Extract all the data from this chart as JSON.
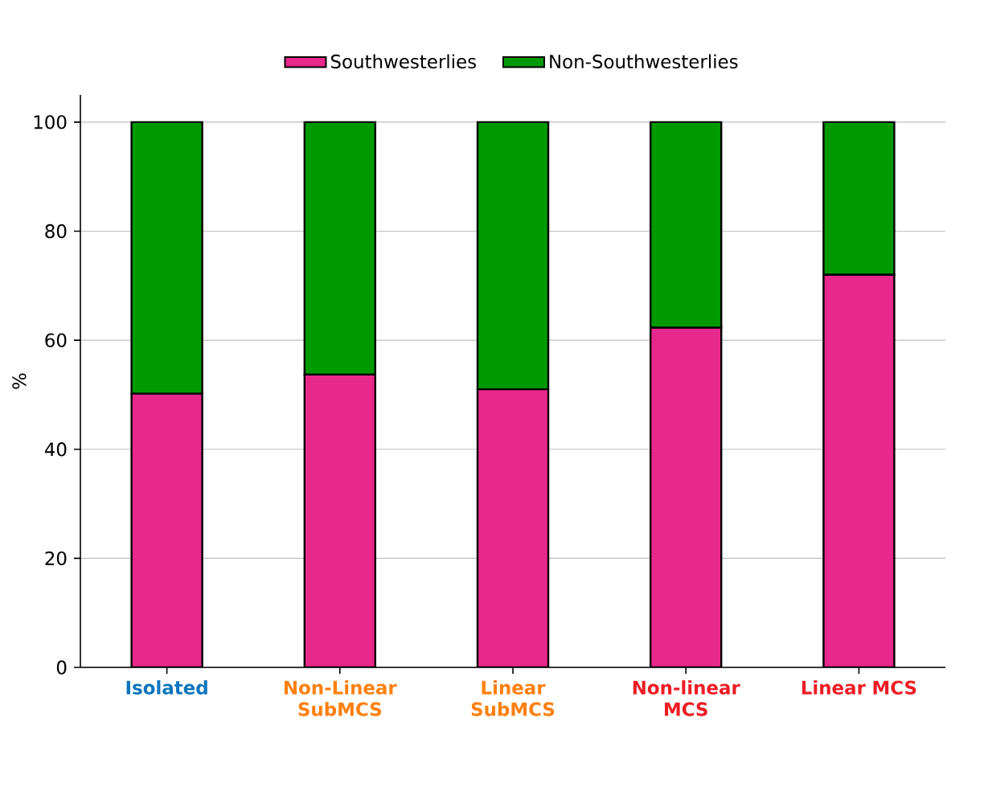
{
  "chart_data": {
    "type": "bar",
    "stacked": true,
    "ylabel": "%",
    "categories": [
      "Isolated",
      "Non-Linear SubMCS",
      "Linear SubMCS",
      "Non-linear MCS",
      "Linear MCS"
    ],
    "series": [
      {
        "name": "Southwesterlies",
        "color": "#e8288a",
        "values": [
          50.2,
          53.7,
          51.0,
          62.3,
          72.0
        ]
      },
      {
        "name": "Non-Southwesterlies",
        "color": "#009a00",
        "values": [
          49.8,
          46.3,
          49.0,
          37.7,
          28.0
        ]
      }
    ],
    "ylim": [
      0,
      105
    ],
    "yticks": [
      0,
      20,
      40,
      60,
      80,
      100
    ],
    "grid": "y",
    "legend": "top"
  }
}
